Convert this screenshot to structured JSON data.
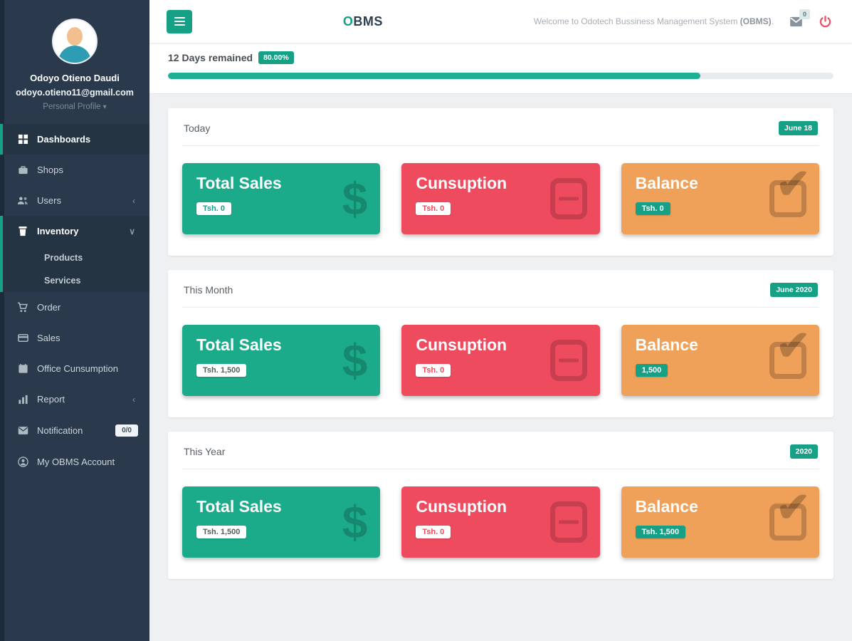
{
  "colors": {
    "teal": "#16a085",
    "sidebar_bg": "#2a3a4c",
    "green_card": "#1cab8a",
    "red_card": "#ee4b5f",
    "orange_card": "#f0a159"
  },
  "sidebar": {
    "profile": {
      "name": "Odoyo Otieno Daudi",
      "email": "odoyo.otieno11@gmail.com",
      "menu_label": "Personal Profile",
      "caret": "▾"
    },
    "items": [
      {
        "label": "Dashboards"
      },
      {
        "label": "Shops"
      },
      {
        "label": "Users",
        "chevron": "‹"
      },
      {
        "label": "Inventory",
        "chevron": "∨"
      },
      {
        "label": "Products"
      },
      {
        "label": "Services"
      },
      {
        "label": "Order"
      },
      {
        "label": "Sales"
      },
      {
        "label": "Office Cunsumption"
      },
      {
        "label": "Report",
        "chevron": "‹"
      },
      {
        "label": "Notification",
        "badge": "0/0"
      },
      {
        "label": "My OBMS Account"
      }
    ]
  },
  "header": {
    "brand": {
      "o": "O",
      "rest": "BMS"
    },
    "welcome": {
      "prefix": "Welcome to Odotech Bussiness Management System ",
      "bold": "(OBMS)",
      "suffix": "."
    },
    "mail_badge": "0"
  },
  "progress": {
    "label": "12 Days remained",
    "percent": 80,
    "percent_label": "80.00%"
  },
  "sections": [
    {
      "title": "Today",
      "badge": "June 18",
      "cards": [
        {
          "title": "Total Sales",
          "value": "Tsh. 0"
        },
        {
          "title": "Cunsuption",
          "value": "Tsh. 0"
        },
        {
          "title": "Balance",
          "value": "Tsh. 0"
        }
      ]
    },
    {
      "title": "This Month",
      "badge": "June 2020",
      "cards": [
        {
          "title": "Total Sales",
          "value": "Tsh. 1,500"
        },
        {
          "title": "Cunsuption",
          "value": "Tsh. 0"
        },
        {
          "title": "Balance",
          "value": "1,500"
        }
      ]
    },
    {
      "title": "This Year",
      "badge": "2020",
      "cards": [
        {
          "title": "Total Sales",
          "value": "Tsh. 1,500"
        },
        {
          "title": "Cunsuption",
          "value": "Tsh. 0"
        },
        {
          "title": "Balance",
          "value": "Tsh. 1,500"
        }
      ]
    }
  ]
}
